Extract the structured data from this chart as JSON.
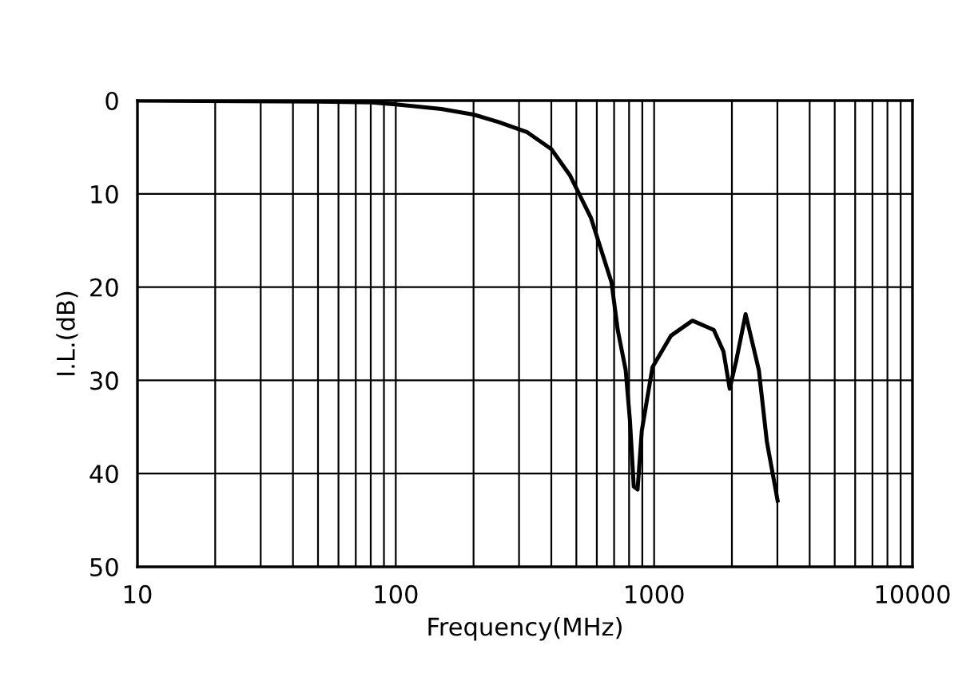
{
  "chart_data": {
    "type": "line",
    "xlabel": "Frequency(MHz)",
    "ylabel": "I.L.(dB)",
    "log": "x",
    "grid": true,
    "marker": "none",
    "line_style": "solid",
    "xlim": [
      10,
      10000
    ],
    "ylim": [
      50,
      0
    ],
    "xticks": [
      10,
      {
        "value": 20,
        "label": null
      },
      {
        "value": 30,
        "label": null
      },
      {
        "value": 40,
        "label": null
      },
      {
        "value": 50,
        "label": null
      },
      {
        "value": 60,
        "label": null
      },
      {
        "value": 70,
        "label": null
      },
      {
        "value": 80,
        "label": null
      },
      {
        "value": 90,
        "label": null
      },
      100,
      {
        "value": 200,
        "label": null
      },
      {
        "value": 300,
        "label": null
      },
      {
        "value": 400,
        "label": null
      },
      {
        "value": 500,
        "label": null
      },
      {
        "value": 600,
        "label": null
      },
      {
        "value": 700,
        "label": null
      },
      {
        "value": 800,
        "label": null
      },
      {
        "value": 900,
        "label": null
      },
      1000,
      {
        "value": 2000,
        "label": null
      },
      {
        "value": 3000,
        "label": null
      },
      {
        "value": 4000,
        "label": null
      },
      {
        "value": 5000,
        "label": null
      },
      {
        "value": 6000,
        "label": null
      },
      {
        "value": 7000,
        "label": null
      },
      {
        "value": 8000,
        "label": null
      },
      {
        "value": 9000,
        "label": null
      },
      10000
    ],
    "yticks": [
      0,
      10,
      20,
      30,
      40,
      50
    ],
    "series": [
      {
        "color": "#000000",
        "x": [
          10,
          50,
          80,
          100,
          150,
          200,
          250,
          323,
          400,
          472,
          570,
          684,
          723,
          776,
          806,
          834,
          863,
          896,
          985,
          1163,
          1407,
          1702,
          1855,
          1961,
          2075,
          2260,
          2543,
          2732,
          3006
        ],
        "values": [
          0,
          0.1,
          0.2,
          0.4,
          0.9,
          1.5,
          2.3,
          3.4,
          5.2,
          8.0,
          12.6,
          19.5,
          24.6,
          28.9,
          34.3,
          41.4,
          41.7,
          35.4,
          28.6,
          25.2,
          23.6,
          24.6,
          26.9,
          30.9,
          28.0,
          22.9,
          28.9,
          36.6,
          42.9
        ]
      }
    ]
  }
}
